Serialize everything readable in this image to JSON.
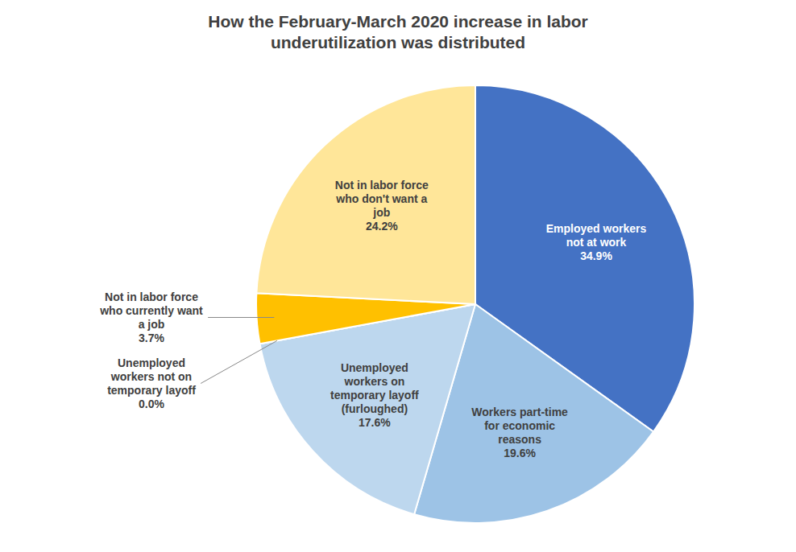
{
  "chart_data": {
    "type": "pie",
    "title": "How the February-March 2020 increase in labor\nunderutilization was distributed",
    "categories": [
      "Employed workers\nnot at work",
      "Workers part-time\nfor economic\nreasons",
      "Unemployed\nworkers on\ntemporary layoff\n(furloughed)",
      "Unemployed\nworkers not on\ntemporary layoff",
      "Not in labor force\nwho currently want\na job",
      "Not in labor force\nwho don't want a\njob"
    ],
    "values": [
      34.9,
      19.6,
      17.6,
      0.0,
      3.7,
      24.2
    ],
    "value_labels": [
      "34.9%",
      "19.6%",
      "17.6%",
      "0.0%",
      "3.7%",
      "24.2%"
    ],
    "colors": [
      "#4472C4",
      "#9DC3E6",
      "#BDD7EE",
      "#C0C0C0",
      "#FFC000",
      "#FFE699"
    ],
    "data_labels": true
  }
}
